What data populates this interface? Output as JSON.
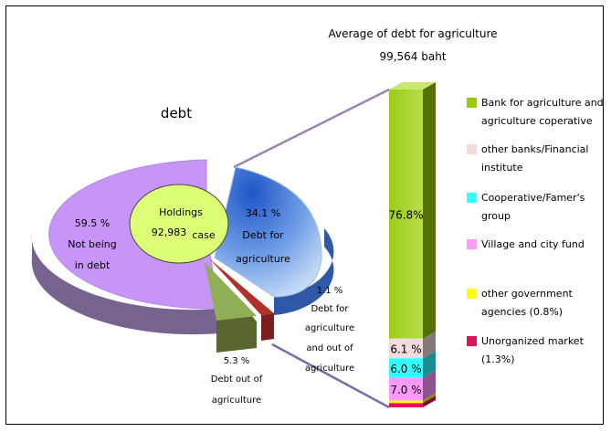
{
  "chart_data": [
    {
      "type": "pie",
      "title": "debt",
      "center_label": [
        "Holdings",
        "92,983",
        "case"
      ],
      "slices": [
        {
          "label": [
            "59.5 %",
            "Not being",
            "in debt"
          ],
          "value": 59.5,
          "color": "#c795f5"
        },
        {
          "label": [
            "34.1 %",
            "Debt for",
            "agriculture"
          ],
          "value": 34.1,
          "color": "#5b8fd6"
        },
        {
          "label": [
            "1.1 %",
            "Debt for",
            "agriculture",
            "and out of",
            "agriculture"
          ],
          "value": 1.1,
          "color": "#b0302a"
        },
        {
          "label": [
            "5.3 %",
            "Debt out of",
            "agriculture"
          ],
          "value": 5.3,
          "color": "#8fae55"
        }
      ]
    },
    {
      "type": "bar",
      "stacked": true,
      "title": [
        "Average of debt for agriculture",
        "99,564 baht"
      ],
      "series": [
        {
          "name": "Bank for agriculture and agriculture coperative",
          "value": 76.8,
          "label": "76.8%",
          "color": "#99cc00"
        },
        {
          "name": "other banks/Financial institute",
          "value": 6.1,
          "label": "6.1 %",
          "color": "#f2dcdb"
        },
        {
          "name": "Cooperative/Famer's group",
          "value": 6.0,
          "label": "6.0 %",
          "color": "#33ffff"
        },
        {
          "name": "Village and city fund",
          "value": 7.0,
          "label": "7.0 %",
          "color": "#ff99ff"
        },
        {
          "name": "other government agencies (0.8%)",
          "value": 0.8,
          "label": "",
          "color": "#ffff00"
        },
        {
          "name": "Unorganized market (1.3%)",
          "value": 1.3,
          "label": "",
          "color": "#e0115f"
        }
      ],
      "legend_position": "right"
    }
  ]
}
